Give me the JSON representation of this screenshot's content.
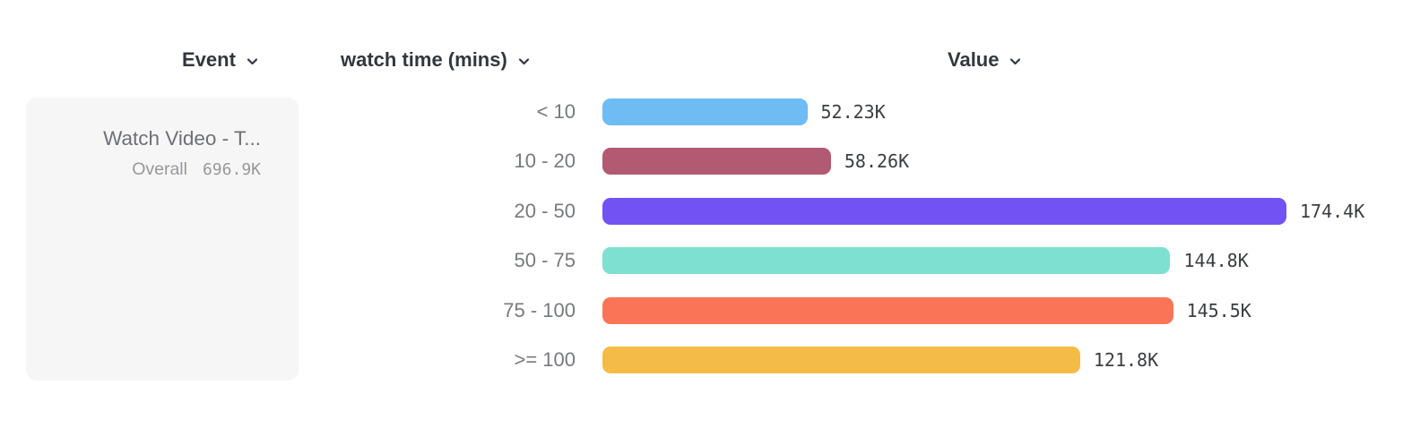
{
  "columns": [
    {
      "label": "Event"
    },
    {
      "label": "watch time (mins)"
    },
    {
      "label": "Value"
    }
  ],
  "event_card": {
    "title": "Watch Video - T...",
    "overall_label": "Overall",
    "overall_value": "696.9K"
  },
  "chart_data": {
    "type": "bar",
    "orientation": "horizontal",
    "title": "",
    "xlabel": "Value",
    "ylabel": "watch time (mins)",
    "categories": [
      "< 10",
      "10 - 20",
      "20 - 50",
      "50 - 75",
      "75 - 100",
      ">= 100"
    ],
    "values": [
      52230,
      58260,
      174400,
      144800,
      145500,
      121800
    ],
    "value_labels": [
      "52.23K",
      "58.26K",
      "174.4K",
      "144.8K",
      "145.5K",
      "121.8K"
    ],
    "bar_colors": [
      "#6fbbf3",
      "#b25a71",
      "#7252f2",
      "#7de0d1",
      "#fa7557",
      "#f4bc47"
    ],
    "xlim": [
      0,
      174400
    ],
    "grid": false,
    "legend": "none"
  },
  "icons": {
    "chevron_color": "#33373e"
  }
}
